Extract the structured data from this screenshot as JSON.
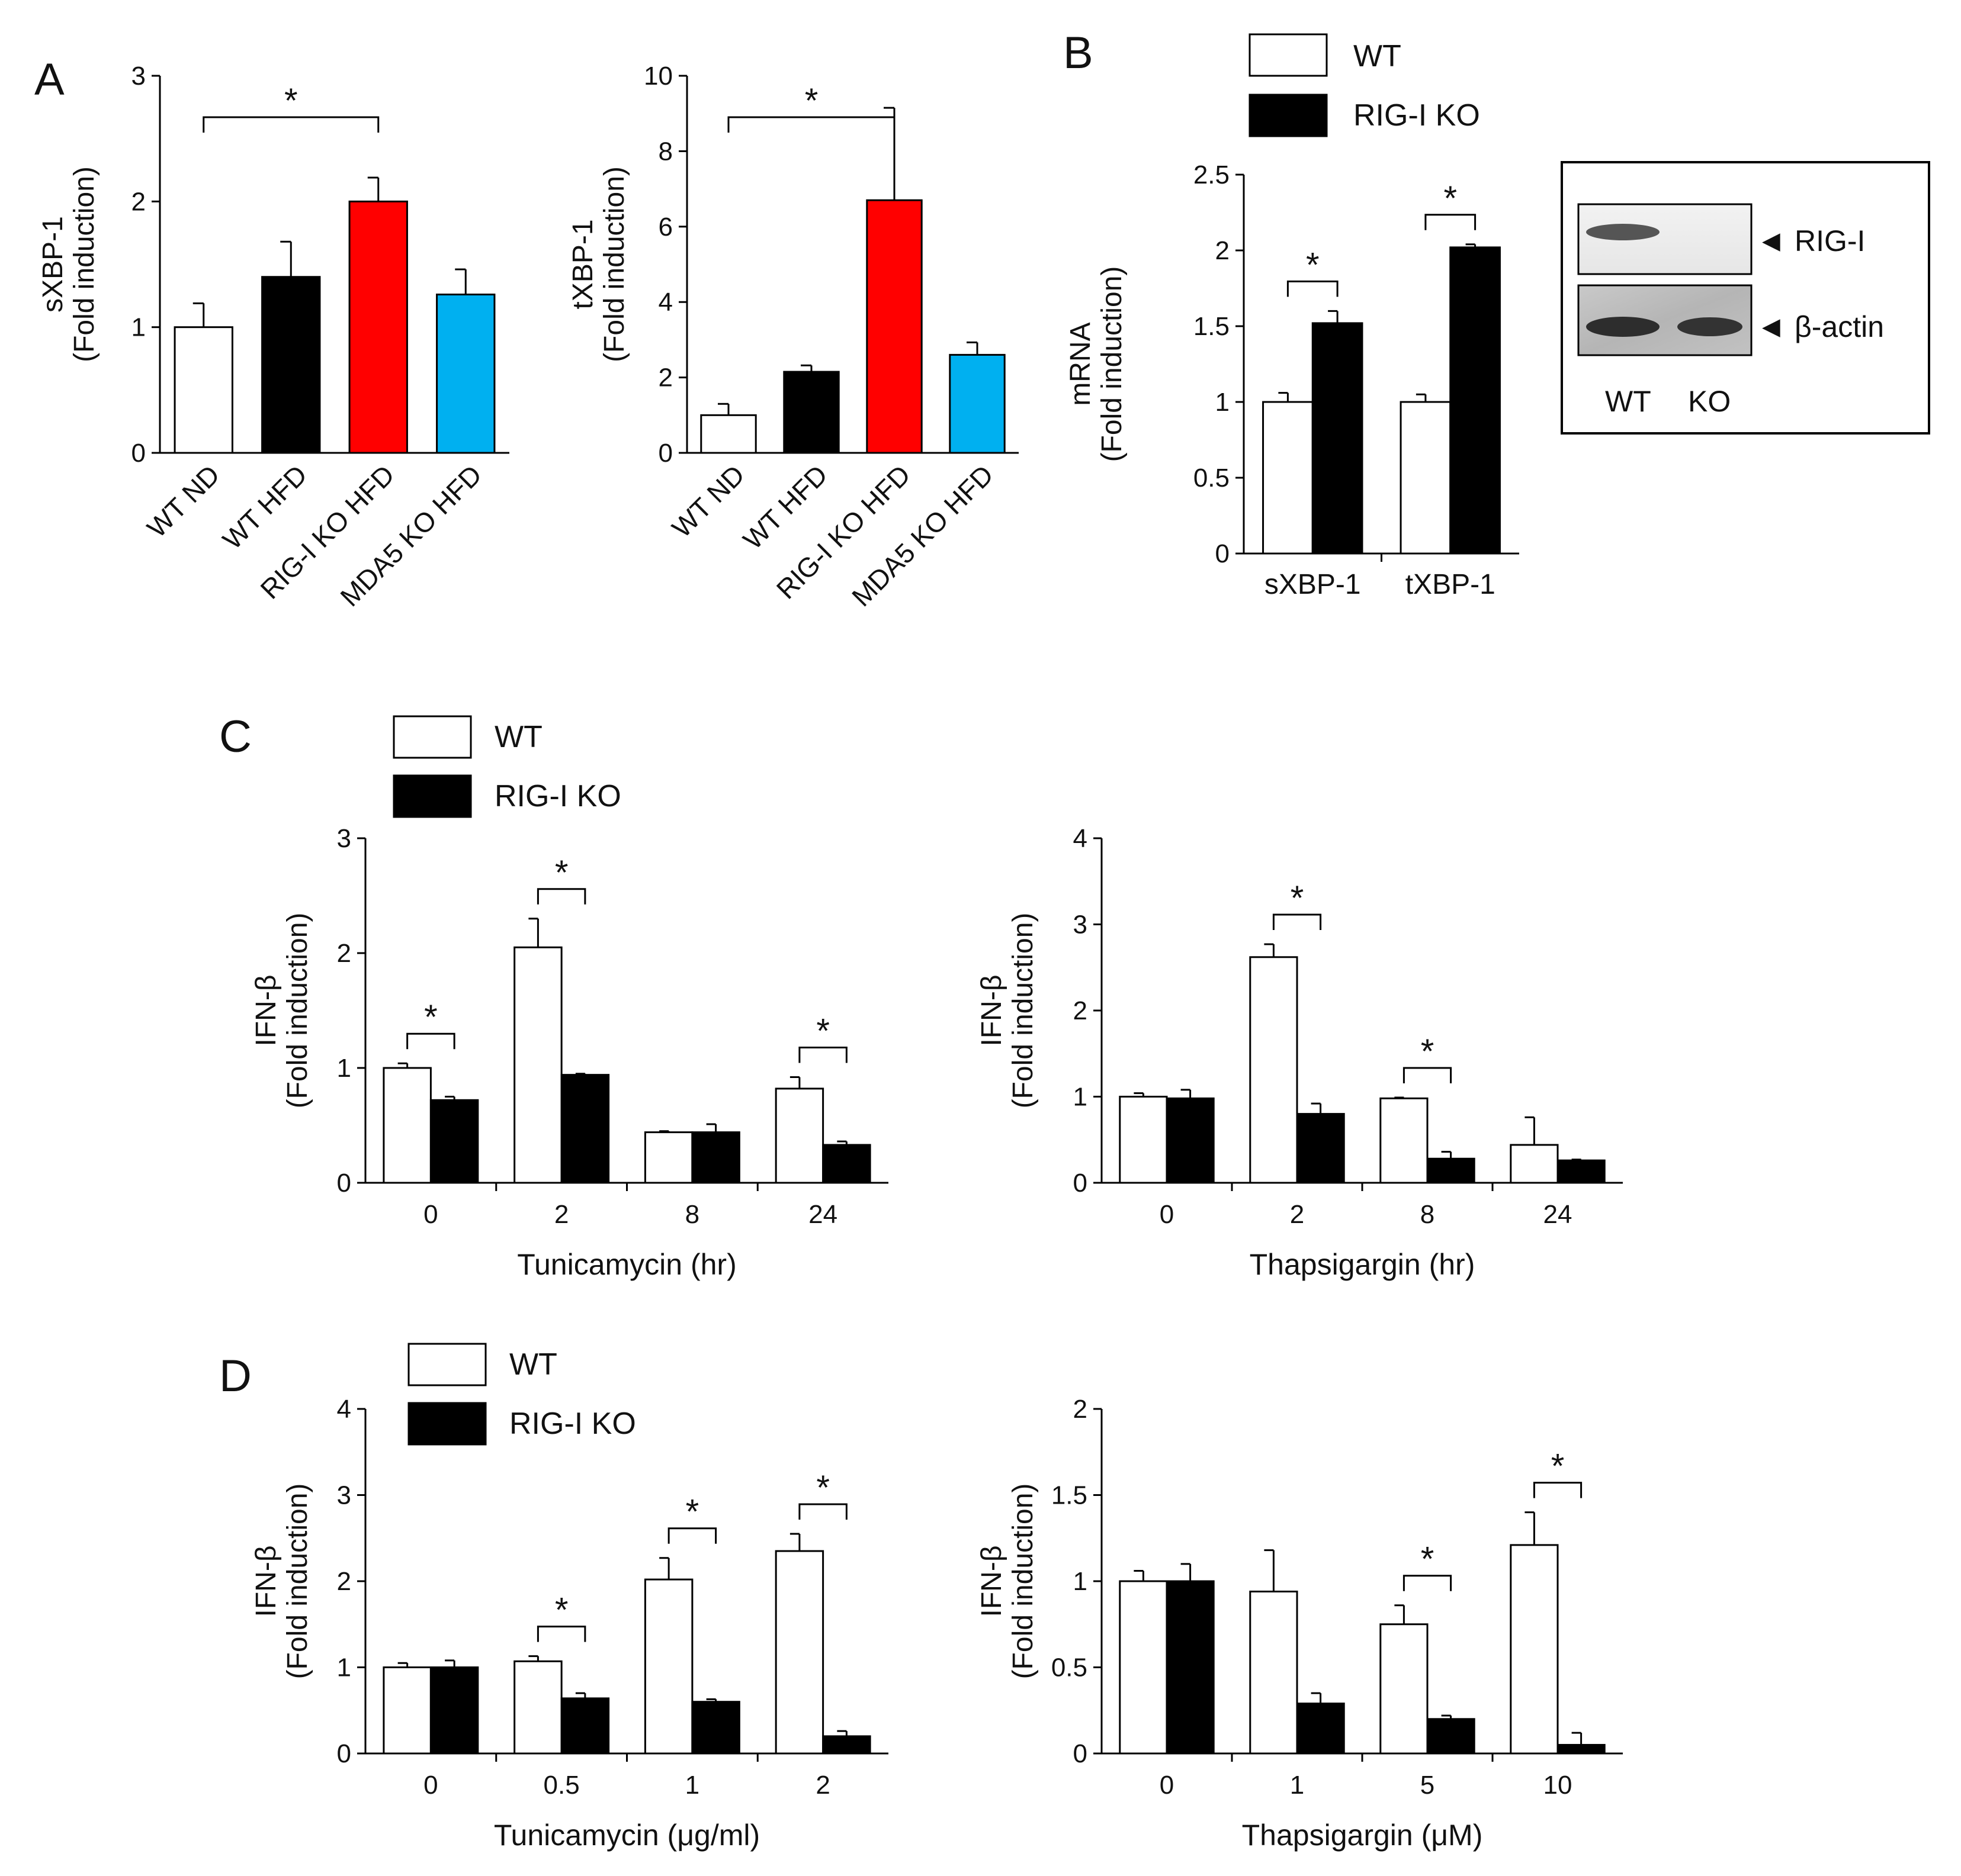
{
  "panel_labels": {
    "a": "A",
    "b": "B",
    "c": "C",
    "d": "D"
  },
  "legend": {
    "wt_label": "WT",
    "ko_label": "RIG-I KO",
    "wt_fill": "#ffffff",
    "ko_fill": "#000000"
  },
  "blot": {
    "band1_label": "RIG-I",
    "band2_label": "β-actin",
    "lane1": "WT",
    "lane2": "KO",
    "marker_glyph": "◀"
  },
  "chart_data": [
    {
      "id": "A1",
      "type": "bar",
      "title": "",
      "categories": [
        "WT ND",
        "WT HFD",
        "RIG-I KO HFD",
        "MDA5 KO HFD"
      ],
      "values": [
        1.0,
        1.4,
        2.0,
        1.26
      ],
      "errors": [
        0.19,
        0.28,
        0.19,
        0.2
      ],
      "colors": [
        "#ffffff",
        "#000000",
        "#ff0000",
        "#00b0f0"
      ],
      "ylabel_line1": "sXBP-1",
      "ylabel_line2": "(Fold induction)",
      "xlabel": "",
      "ylim": [
        0,
        3
      ],
      "yticks": [
        "0",
        "1",
        "2",
        "3"
      ],
      "significance": [
        {
          "from": 0,
          "to": 2,
          "label": "*"
        }
      ]
    },
    {
      "id": "A2",
      "type": "bar",
      "title": "",
      "categories": [
        "WT ND",
        "WT HFD",
        "RIG-I KO HFD",
        "MDA5 KO HFD"
      ],
      "values": [
        1.0,
        2.15,
        6.7,
        2.6
      ],
      "errors": [
        0.3,
        0.17,
        2.45,
        0.33
      ],
      "colors": [
        "#ffffff",
        "#000000",
        "#ff0000",
        "#00b0f0"
      ],
      "ylabel_line1": "tXBP-1",
      "ylabel_line2": "(Fold induction)",
      "xlabel": "",
      "ylim": [
        0,
        10
      ],
      "yticks": [
        "0",
        "2",
        "4",
        "6",
        "8",
        "10"
      ],
      "significance": [
        {
          "from": 0,
          "to": 2,
          "label": "*"
        }
      ]
    },
    {
      "id": "B",
      "type": "bar",
      "title": "",
      "categories": [
        "sXBP-1",
        "tXBP-1"
      ],
      "series": [
        {
          "name": "WT",
          "values": [
            1.0,
            1.0
          ],
          "errors": [
            0.06,
            0.05
          ]
        },
        {
          "name": "RIG-I KO",
          "values": [
            1.52,
            2.02
          ],
          "errors": [
            0.08,
            0.02
          ]
        }
      ],
      "ylabel_line1": "mRNA",
      "ylabel_line2": "(Fold induction)",
      "xlabel": "",
      "ylim": [
        0,
        2.5
      ],
      "yticks": [
        "0",
        "0.5",
        "1",
        "1.5",
        "2",
        "2.5"
      ],
      "significance": [
        {
          "group": 0,
          "label": "*"
        },
        {
          "group": 1,
          "label": "*"
        }
      ]
    },
    {
      "id": "C1",
      "type": "bar",
      "title": "",
      "categories": [
        "0",
        "2",
        "8",
        "24"
      ],
      "series": [
        {
          "name": "WT",
          "values": [
            1.0,
            2.05,
            0.44,
            0.82
          ],
          "errors": [
            0.04,
            0.25,
            0.01,
            0.1
          ]
        },
        {
          "name": "RIG-I KO",
          "values": [
            0.72,
            0.94,
            0.44,
            0.33
          ],
          "errors": [
            0.03,
            0.01,
            0.07,
            0.03
          ]
        }
      ],
      "ylabel_line1": "IFN-β",
      "ylabel_line2": "(Fold induction)",
      "xlabel": "Tunicamycin (hr)",
      "ylim": [
        0,
        3
      ],
      "yticks": [
        "0",
        "1",
        "2",
        "3"
      ],
      "significance": [
        {
          "group": 0,
          "label": "*"
        },
        {
          "group": 1,
          "label": "*"
        },
        {
          "group": 3,
          "label": "*"
        }
      ]
    },
    {
      "id": "C2",
      "type": "bar",
      "title": "",
      "categories": [
        "0",
        "2",
        "8",
        "24"
      ],
      "series": [
        {
          "name": "WT",
          "values": [
            1.0,
            2.62,
            0.98,
            0.44
          ],
          "errors": [
            0.04,
            0.15,
            0.01,
            0.32
          ]
        },
        {
          "name": "RIG-I KO",
          "values": [
            0.98,
            0.8,
            0.28,
            0.26
          ],
          "errors": [
            0.1,
            0.12,
            0.08,
            0.01
          ]
        }
      ],
      "ylabel_line1": "IFN-β",
      "ylabel_line2": "(Fold induction)",
      "xlabel": "Thapsigargin (hr)",
      "ylim": [
        0,
        4
      ],
      "yticks": [
        "0",
        "1",
        "2",
        "3",
        "4"
      ],
      "significance": [
        {
          "group": 1,
          "label": "*"
        },
        {
          "group": 2,
          "label": "*"
        }
      ]
    },
    {
      "id": "D1",
      "type": "bar",
      "title": "",
      "categories": [
        "0",
        "0.5",
        "1",
        "2"
      ],
      "series": [
        {
          "name": "WT",
          "values": [
            1.0,
            1.07,
            2.02,
            2.35
          ],
          "errors": [
            0.05,
            0.06,
            0.25,
            0.2
          ]
        },
        {
          "name": "RIG-I KO",
          "values": [
            1.0,
            0.64,
            0.6,
            0.2
          ],
          "errors": [
            0.08,
            0.06,
            0.03,
            0.06
          ]
        }
      ],
      "ylabel_line1": "IFN-β",
      "ylabel_line2": "(Fold induction)",
      "xlabel": "Tunicamycin (μg/ml)",
      "ylim": [
        0,
        4
      ],
      "yticks": [
        "0",
        "1",
        "2",
        "3",
        "4"
      ],
      "significance": [
        {
          "group": 1,
          "label": "*"
        },
        {
          "group": 2,
          "label": "*"
        },
        {
          "group": 3,
          "label": "*"
        }
      ]
    },
    {
      "id": "D2",
      "type": "bar",
      "title": "",
      "categories": [
        "0",
        "1",
        "5",
        "10"
      ],
      "series": [
        {
          "name": "WT",
          "values": [
            1.0,
            0.94,
            0.75,
            1.21
          ],
          "errors": [
            0.06,
            0.24,
            0.11,
            0.19
          ]
        },
        {
          "name": "RIG-I KO",
          "values": [
            1.0,
            0.29,
            0.2,
            0.05
          ],
          "errors": [
            0.1,
            0.06,
            0.02,
            0.07
          ]
        }
      ],
      "ylabel_line1": "IFN-β",
      "ylabel_line2": "(Fold induction)",
      "xlabel": "Thapsigargin (μM)",
      "ylim": [
        0,
        2
      ],
      "yticks": [
        "0",
        "0.5",
        "1",
        "1.5",
        "2"
      ],
      "significance": [
        {
          "group": 2,
          "label": "*"
        },
        {
          "group": 3,
          "label": "*"
        }
      ]
    }
  ]
}
